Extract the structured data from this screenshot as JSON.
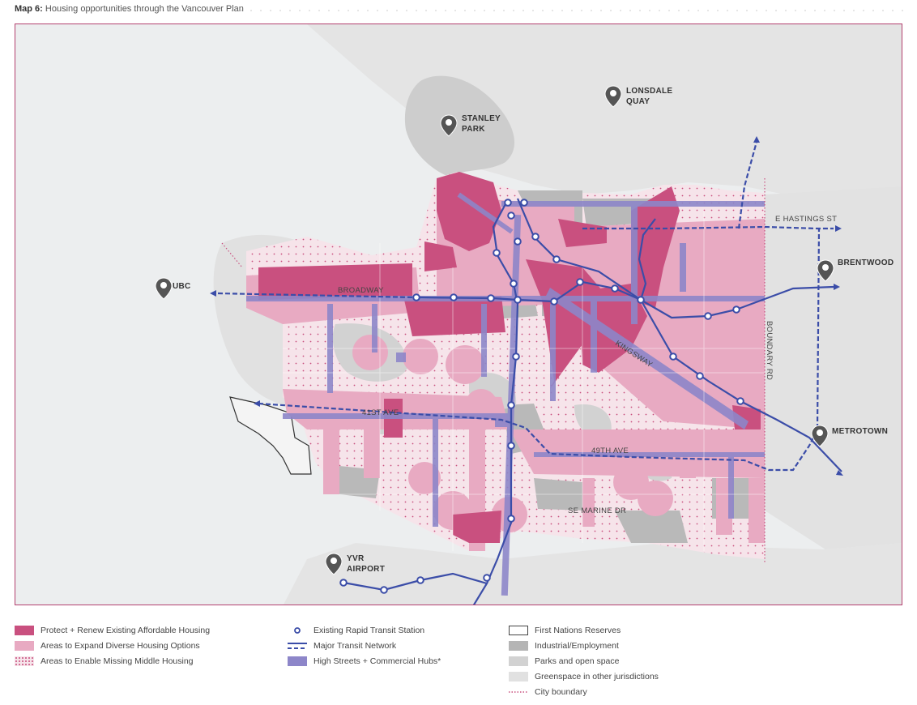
{
  "header": {
    "map_number": "Map 6:",
    "title": "Housing opportunities through the Vancouver Plan"
  },
  "places": {
    "stanley_park": [
      "STANLEY",
      "PARK"
    ],
    "lonsdale_quay": [
      "LONSDALE",
      "QUAY"
    ],
    "ubc": "UBC",
    "brentwood": "BRENTWOOD",
    "metrotown": "METROTOWN",
    "yvr_airport": [
      "YVR",
      "AIRPORT"
    ]
  },
  "streets": {
    "e_hastings": "E HASTINGS ST",
    "broadway": "BROADWAY",
    "kingsway": "KINGSWAY",
    "boundary_rd": "BOUNDARY RD",
    "ave_41": "41ST AVE",
    "ave_49": "49TH AVE",
    "se_marine": "SE MARINE DR"
  },
  "legend": {
    "col1": [
      {
        "key": "protect",
        "label": "Protect + Renew Existing Affordable Housing"
      },
      {
        "key": "expand",
        "label": "Areas to Expand Diverse Housing Options"
      },
      {
        "key": "missing_middle",
        "label": "Areas to Enable Missing Middle Housing"
      }
    ],
    "col2": [
      {
        "key": "station",
        "label": "Existing Rapid Transit Station"
      },
      {
        "key": "transit",
        "label": "Major Transit Network"
      },
      {
        "key": "high_streets",
        "label": "High Streets + Commercial Hubs*"
      }
    ],
    "col3": [
      {
        "key": "first_nations",
        "label": "First Nations Reserves"
      },
      {
        "key": "industrial",
        "label": "Industrial/Employment"
      },
      {
        "key": "parks",
        "label": "Parks and open space"
      },
      {
        "key": "greenspace",
        "label": "Greenspace in other jurisdictions"
      },
      {
        "key": "boundary",
        "label": "City boundary"
      }
    ]
  },
  "colors": {
    "protect": "#c9507f",
    "expand": "#e8aac2",
    "missing_middle": "#f6e4ea",
    "transit": "#3b4da8",
    "high_streets": "#8d86c9",
    "industrial": "#b5b5b5",
    "parks": "#d2d2d2",
    "greenspace": "#e1e1e1",
    "water": "#eceeef",
    "frame": "#b3406f"
  }
}
